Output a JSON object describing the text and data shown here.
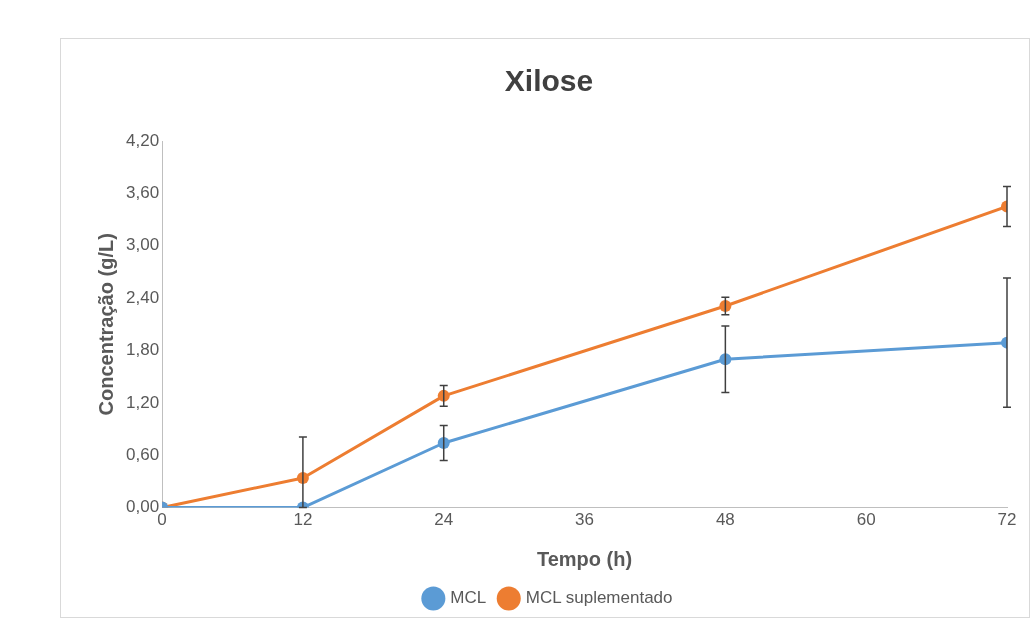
{
  "chart_data": {
    "type": "line",
    "title": "Xilose",
    "xlabel": "Tempo (h)",
    "ylabel": "Concentração (g/L)",
    "x": [
      0,
      12,
      24,
      48,
      72
    ],
    "series": [
      {
        "name": "MCL",
        "color": "#5b9bd5",
        "values": [
          0,
          0,
          0.74,
          1.7,
          1.89
        ],
        "errors": [
          null,
          null,
          0.2,
          0.38,
          0.74
        ]
      },
      {
        "name": "MCL suplementado",
        "color": "#ed7d31",
        "values": [
          0,
          0.34,
          1.28,
          2.31,
          3.45
        ],
        "errors": [
          null,
          [
            0,
            0.81
          ],
          0.12,
          0.1,
          0.23
        ]
      }
    ],
    "xlim": [
      0,
      72
    ],
    "xticks": [
      0,
      12,
      24,
      36,
      48,
      60,
      72
    ],
    "ylim": [
      0,
      4.2
    ],
    "yticks": [
      {
        "value": 0,
        "label": "0,00"
      },
      {
        "value": 0.6,
        "label": "0,60"
      },
      {
        "value": 1.2,
        "label": "1,20"
      },
      {
        "value": 1.8,
        "label": "1,80"
      },
      {
        "value": 2.4,
        "label": "2,40"
      },
      {
        "value": 3,
        "label": "3,00"
      },
      {
        "value": 3.6,
        "label": "3,60"
      },
      {
        "value": 4.2,
        "label": "4,20"
      }
    ],
    "grid": false,
    "legend": "bottom",
    "marker": "circle",
    "line_style": "solid"
  }
}
